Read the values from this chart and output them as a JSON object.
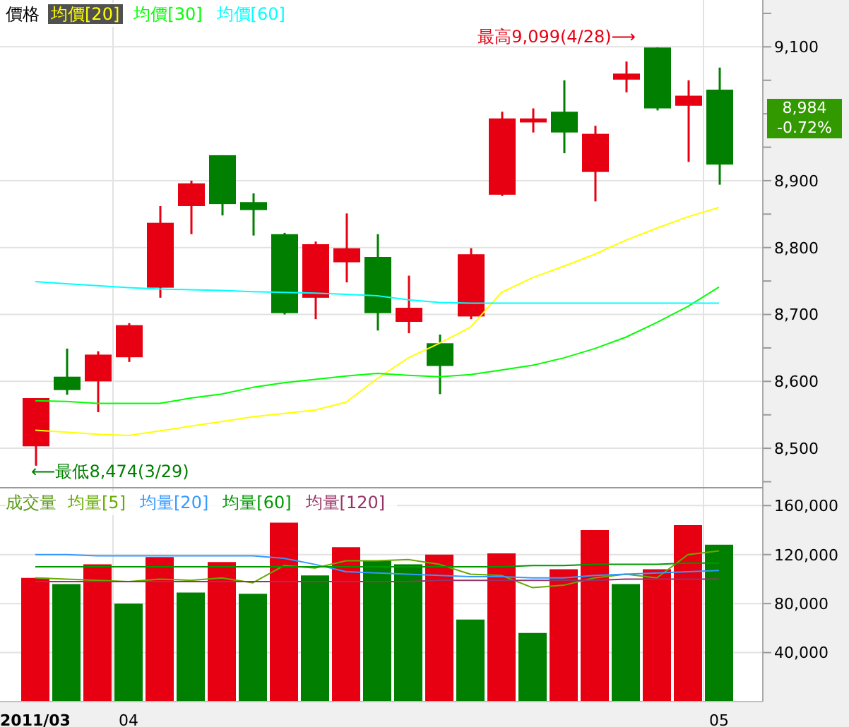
{
  "chart_data": [
    {
      "type": "candlestick",
      "title": "價格",
      "categories": [
        "2011/03",
        null,
        null,
        "04",
        null,
        null,
        null,
        null,
        null,
        null,
        null,
        null,
        null,
        null,
        null,
        null,
        null,
        null,
        null,
        null,
        null,
        null,
        "05"
      ],
      "ohlc": [
        [
          8503,
          8575,
          8474,
          8575
        ],
        [
          8607,
          8649,
          8580,
          8587
        ],
        [
          8600,
          8645,
          8554,
          8640
        ],
        [
          8636,
          8687,
          8629,
          8684
        ],
        [
          8740,
          8862,
          8725,
          8837
        ],
        [
          8862,
          8900,
          8820,
          8896
        ],
        [
          8938,
          8938,
          8848,
          8865
        ],
        [
          8868,
          8881,
          8818,
          8856
        ],
        [
          8820,
          8822,
          8700,
          8702
        ],
        [
          8725,
          8809,
          8693,
          8805
        ],
        [
          8778,
          8851,
          8748,
          8799
        ],
        [
          8786,
          8820,
          8676,
          8702
        ],
        [
          8689,
          8758,
          8672,
          8710
        ],
        [
          8657,
          8670,
          8581,
          8623
        ],
        [
          8697,
          8799,
          8693,
          8790
        ],
        [
          8879,
          9003,
          8877,
          8993
        ],
        [
          8987,
          9008,
          8972,
          8993
        ],
        [
          9003,
          9050,
          8941,
          8972
        ],
        [
          8913,
          8982,
          8869,
          8970
        ],
        [
          9051,
          9078,
          9032,
          9060
        ],
        [
          9099,
          9099,
          9005,
          9008
        ],
        [
          9012,
          9050,
          8928,
          9027
        ],
        [
          9036,
          9069,
          8894,
          8924
        ]
      ],
      "colors": [
        "#e60012",
        "#007f00",
        "#e60012",
        "#e60012",
        "#e60012",
        "#e60012",
        "#007f00",
        "#007f00",
        "#007f00",
        "#e60012",
        "#e60012",
        "#007f00",
        "#e60012",
        "#007f00",
        "#e60012",
        "#e60012",
        "#e60012",
        "#007f00",
        "#e60012",
        "#e60012",
        "#007f00",
        "#e60012",
        "#007f00"
      ],
      "series": [
        {
          "name": "均價[20]",
          "type": "line",
          "color": "#ffff00",
          "values": [
            8527,
            8524,
            8521,
            8519,
            8526,
            8533,
            8540,
            8547,
            8552,
            8557,
            8569,
            8604,
            8635,
            8657,
            8681,
            8733,
            8755,
            8772,
            8790,
            8811,
            8829,
            8846,
            8860
          ]
        },
        {
          "name": "均價[30]",
          "type": "line",
          "color": "#00ff00",
          "values": [
            8571,
            8570,
            8567,
            8567,
            8567,
            8575,
            8581,
            8591,
            8598,
            8603,
            8608,
            8612,
            8609,
            8607,
            8610,
            8617,
            8624,
            8635,
            8649,
            8666,
            8688,
            8712,
            8741
          ]
        },
        {
          "name": "均價[60]",
          "type": "line",
          "color": "#00ffff",
          "values": [
            8749,
            8746,
            8743,
            8740,
            8738,
            8737,
            8736,
            8734,
            8733,
            8732,
            8730,
            8728,
            8722,
            8718,
            8717,
            8717,
            8717,
            8717,
            8717,
            8717,
            8717,
            8717,
            8717
          ]
        }
      ],
      "ylim": [
        8440,
        9170
      ],
      "yticks": [
        {
          "value": 8450,
          "label": null
        },
        {
          "value": 8500,
          "label": "8,500"
        },
        {
          "value": 8550,
          "label": null
        },
        {
          "value": 8600,
          "label": "8,600"
        },
        {
          "value": 8650,
          "label": null
        },
        {
          "value": 8700,
          "label": "8,700"
        },
        {
          "value": 8750,
          "label": null
        },
        {
          "value": 8800,
          "label": "8,800"
        },
        {
          "value": 8850,
          "label": null
        },
        {
          "value": 8900,
          "label": "8,900"
        },
        {
          "value": 8950,
          "label": null
        },
        {
          "value": 9000,
          "label": null
        },
        {
          "value": 9050,
          "label": null
        },
        {
          "value": 9100,
          "label": "9,100"
        },
        {
          "value": 9150,
          "label": null
        }
      ],
      "grid": true,
      "legend": "top left",
      "tick_labels": "y",
      "annotations": [
        "最高9,099(4/28)⟶",
        "⟵最低8,474(3/29)",
        "8,984",
        "-0.72%"
      ]
    },
    {
      "type": "bar",
      "title": "成交量",
      "categories": [
        "2011/03",
        null,
        null,
        "04",
        null,
        null,
        null,
        null,
        null,
        null,
        null,
        null,
        null,
        null,
        null,
        null,
        null,
        null,
        null,
        null,
        null,
        null,
        "05"
      ],
      "series": [
        {
          "type": "bar",
          "colors": [
            "#e60012",
            "#007f00",
            "#e60012",
            "#007f00",
            "#e60012",
            "#007f00",
            "#e60012",
            "#007f00",
            "#e60012",
            "#007f00",
            "#e60012",
            "#007f00",
            "#007f00",
            "#e60012",
            "#007f00",
            "#e60012",
            "#007f00",
            "#e60012",
            "#e60012",
            "#007f00",
            "#e60012",
            "#e60012",
            "#007f00"
          ],
          "values": [
            101000,
            96000,
            112000,
            80000,
            118000,
            89000,
            114000,
            88000,
            146000,
            103000,
            126000,
            115000,
            112000,
            120000,
            67000,
            121000,
            56000,
            108000,
            140000,
            96000,
            108000,
            144000,
            128000
          ]
        },
        {
          "name": "均量[5]",
          "type": "line",
          "color": "#66aa00",
          "values": [
            101000,
            100000,
            99000,
            98000,
            100000,
            99000,
            101000,
            97000,
            111000,
            109000,
            115000,
            115000,
            116000,
            112000,
            104000,
            103000,
            93000,
            95000,
            101000,
            104000,
            101000,
            120000,
            123000
          ]
        },
        {
          "name": "均量[20]",
          "type": "line",
          "color": "#3399ff",
          "values": [
            120000,
            120000,
            119000,
            119000,
            119000,
            119000,
            119000,
            119000,
            117000,
            112000,
            106000,
            105000,
            104000,
            103000,
            102000,
            102000,
            101000,
            101000,
            103000,
            104000,
            105000,
            106000,
            107000
          ]
        },
        {
          "name": "均量[60]",
          "type": "line",
          "color": "#009900",
          "values": [
            110000,
            110000,
            110000,
            110000,
            110000,
            110000,
            110000,
            110000,
            110000,
            110000,
            110000,
            110000,
            110000,
            110000,
            110000,
            110000,
            111000,
            111000,
            112000,
            112000,
            112000,
            113000,
            113000
          ]
        },
        {
          "name": "均量[120]",
          "type": "line",
          "color": "#993366",
          "values": [
            98000,
            98000,
            98000,
            98000,
            98000,
            98000,
            98000,
            98000,
            98000,
            98000,
            98000,
            98000,
            98000,
            99000,
            99000,
            99000,
            99000,
            99000,
            99000,
            100000,
            100000,
            100000,
            100000
          ]
        }
      ],
      "ylim": [
        0,
        174000
      ],
      "yticks": [
        {
          "value": 40000,
          "label": "40,000"
        },
        {
          "value": 80000,
          "label": "80,000"
        },
        {
          "value": 120000,
          "label": "120,000"
        },
        {
          "value": 160000,
          "label": "160,000"
        }
      ],
      "grid": true,
      "legend": "top left"
    }
  ]
}
